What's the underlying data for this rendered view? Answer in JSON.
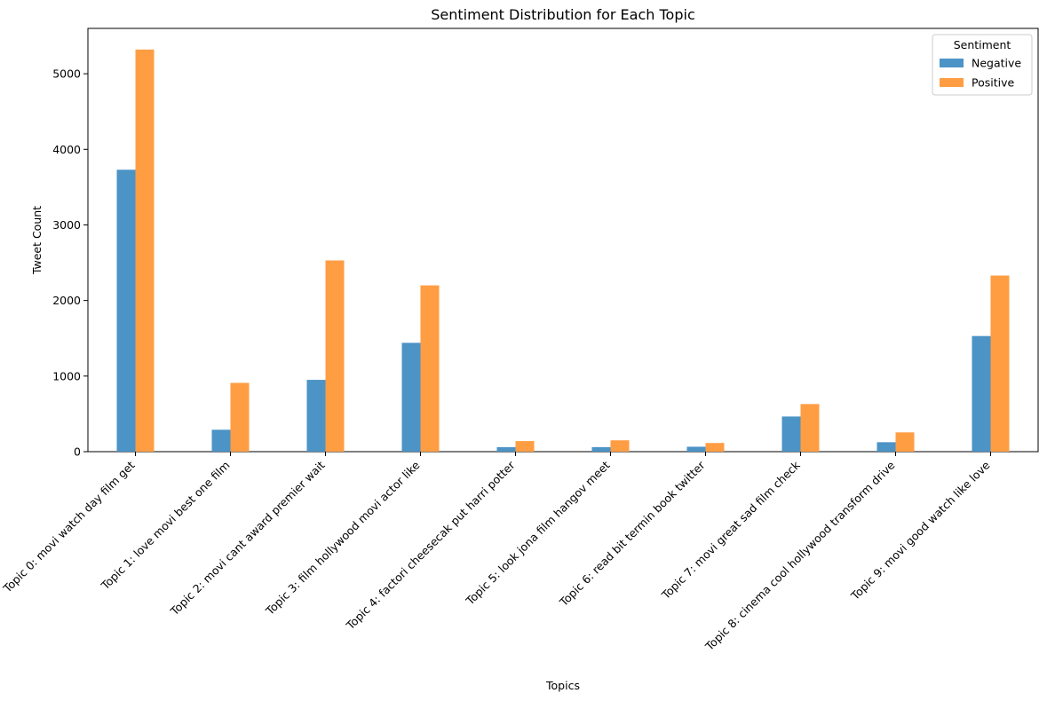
{
  "chart_data": {
    "type": "bar",
    "title": "Sentiment Distribution for Each Topic",
    "xlabel": "Topics",
    "ylabel": "Tweet Count",
    "ylim": [
      0,
      5600
    ],
    "yticks": [
      0,
      1000,
      2000,
      3000,
      4000,
      5000
    ],
    "grid": false,
    "legend": {
      "title": "Sentiment",
      "placement": "top-right"
    },
    "categories": [
      "Topic 0: movi watch day film get",
      "Topic 1: love movi best one film",
      "Topic 2: movi cant award premier wait",
      "Topic 3: film hollywood movi actor like",
      "Topic 4: factori cheesecak put harri potter",
      "Topic 5: look jona film hangov meet",
      "Topic 6: read bit termin book twitter",
      "Topic 7: movi great sad film check",
      "Topic 8: cinema cool hollywood transform drive",
      "Topic 9: movi good watch like love"
    ],
    "series": [
      {
        "name": "Negative",
        "color": "#4c93c6",
        "values": [
          3730,
          290,
          950,
          1440,
          60,
          60,
          65,
          465,
          125,
          1530
        ]
      },
      {
        "name": "Positive",
        "color": "#ff9d43",
        "values": [
          5320,
          910,
          2530,
          2200,
          140,
          150,
          115,
          630,
          255,
          2330
        ]
      }
    ]
  }
}
